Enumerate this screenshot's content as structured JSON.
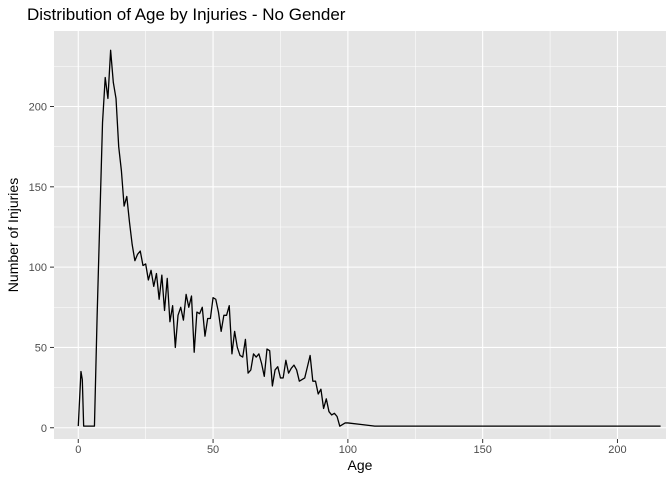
{
  "chart_data": {
    "type": "line",
    "title": "Distribution of Age by Injuries - No Gender",
    "xlabel": "Age",
    "ylabel": "Number of Injuries",
    "xlim": [
      -9,
      218
    ],
    "ylim": [
      -7,
      247
    ],
    "x_ticks": [
      0,
      50,
      100,
      150,
      200
    ],
    "y_ticks": [
      0,
      50,
      100,
      150,
      200
    ],
    "grid": true,
    "legend": "none",
    "panel_color": "#e5e5e5",
    "grid_color": "#ffffff",
    "line_color": "#000000",
    "series": [
      {
        "x": [
          0,
          1,
          1.5,
          2,
          3,
          4,
          5,
          6,
          7,
          8,
          9,
          10,
          11,
          12,
          13,
          14,
          15,
          16,
          17,
          18,
          19,
          20,
          21,
          22,
          23,
          24,
          25,
          26,
          27,
          28,
          29,
          30,
          31,
          32,
          33,
          34,
          35,
          36,
          37,
          38,
          39,
          40,
          41,
          42,
          43,
          44,
          45,
          46,
          47,
          48,
          49,
          50,
          51,
          52,
          53,
          54,
          55,
          56,
          57,
          58,
          59,
          60,
          61,
          62,
          63,
          64,
          65,
          66,
          67,
          68,
          69,
          70,
          71,
          72,
          73,
          74,
          75,
          76,
          77,
          78,
          79,
          80,
          81,
          82,
          83,
          84,
          85,
          86,
          87,
          88,
          89,
          90,
          91,
          92,
          93,
          94,
          95,
          96,
          97,
          98,
          99,
          100,
          105,
          110,
          115,
          120,
          150,
          200,
          216
        ],
        "y": [
          1,
          35,
          30,
          1,
          1,
          1,
          1,
          1,
          70,
          130,
          190,
          218,
          205,
          235,
          215,
          205,
          175,
          160,
          138,
          144,
          128,
          114,
          104,
          108,
          110,
          101,
          102,
          92,
          98,
          88,
          96,
          80,
          95,
          73,
          93,
          66,
          76,
          50,
          70,
          75,
          67,
          83,
          75,
          82,
          47,
          72,
          71,
          75,
          57,
          68,
          68,
          81,
          80,
          72,
          60,
          70,
          70,
          76,
          46,
          60,
          50,
          45,
          44,
          55,
          34,
          36,
          46,
          44,
          46,
          40,
          32,
          49,
          48,
          26,
          36,
          38,
          31,
          31,
          42,
          34,
          37,
          39,
          36,
          29,
          30,
          31,
          38,
          45,
          29,
          29,
          21,
          24,
          12,
          18,
          10,
          8,
          9,
          7,
          1,
          2,
          3,
          3,
          2,
          1,
          1,
          1,
          1,
          1,
          1
        ]
      }
    ]
  }
}
